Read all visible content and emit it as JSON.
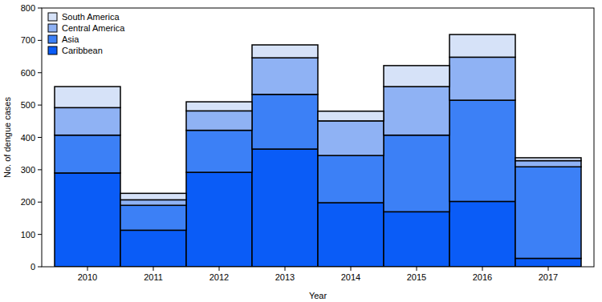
{
  "chart_data": {
    "type": "bar",
    "stacked": true,
    "legend": "top-left",
    "x_label": "Year",
    "y_label": "No. of dengue cases",
    "categories": [
      "2010",
      "2011",
      "2012",
      "2013",
      "2014",
      "2015",
      "2016",
      "2017"
    ],
    "series": [
      {
        "name": "Caribbean",
        "color": "#0a5cf7",
        "values": [
          290,
          113,
          292,
          364,
          198,
          170,
          202,
          26
        ]
      },
      {
        "name": "Asia",
        "color": "#3c80f6",
        "values": [
          117,
          77,
          130,
          169,
          146,
          237,
          313,
          283
        ]
      },
      {
        "name": "Central America",
        "color": "#8fb2f4",
        "values": [
          85,
          17,
          60,
          113,
          107,
          150,
          133,
          19
        ]
      },
      {
        "name": "South America",
        "color": "#d6e2f8",
        "values": [
          65,
          20,
          28,
          40,
          30,
          65,
          70,
          9
        ]
      }
    ],
    "ylim": [
      0,
      800
    ],
    "yticks": [
      0,
      100,
      200,
      300,
      400,
      500,
      600,
      700,
      800
    ],
    "grid": false
  }
}
